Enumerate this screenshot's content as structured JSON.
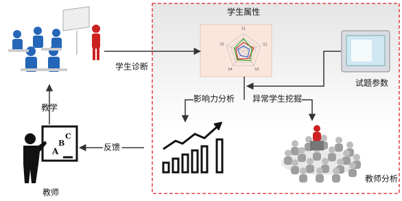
{
  "nodes": {
    "student_attr": {
      "label": "学生属性",
      "axes": [
        "S1",
        "S2",
        "S3",
        "S4",
        "S5"
      ]
    },
    "diagnosis": {
      "label": "学生诊断"
    },
    "item_params": {
      "label": "试题参数"
    },
    "influence": {
      "label": "影响力分析"
    },
    "anomaly": {
      "label": "异常学生挖掘"
    },
    "teaching": {
      "label": "教学"
    },
    "feedback": {
      "label": "反馈"
    },
    "teacher": {
      "label": "教师"
    },
    "teacher_analysis": {
      "label": "教师分析"
    }
  }
}
